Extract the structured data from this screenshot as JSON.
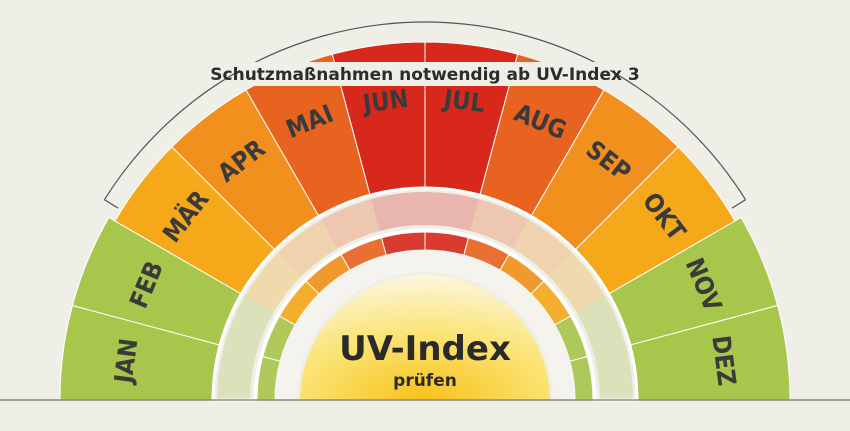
{
  "header": {
    "title": "Schutzmaßnahmen notwendig ab UV-Index 3"
  },
  "center": {
    "title": "UV-Index",
    "subtitle": "prüfen"
  },
  "months": [
    {
      "label": "JAN",
      "color": "#a8c64b"
    },
    {
      "label": "FEB",
      "color": "#a8c64b"
    },
    {
      "label": "MÄR",
      "color": "#f5a81a"
    },
    {
      "label": "APR",
      "color": "#f1901c"
    },
    {
      "label": "MAI",
      "color": "#e8631f"
    },
    {
      "label": "JUN",
      "color": "#d8281c"
    },
    {
      "label": "JUL",
      "color": "#d8281c"
    },
    {
      "label": "AUG",
      "color": "#e8631f"
    },
    {
      "label": "SEP",
      "color": "#f1901c"
    },
    {
      "label": "OKT",
      "color": "#f5a81a"
    },
    {
      "label": "NOV",
      "color": "#a8c64b"
    },
    {
      "label": "DEZ",
      "color": "#a8c64b"
    }
  ]
}
